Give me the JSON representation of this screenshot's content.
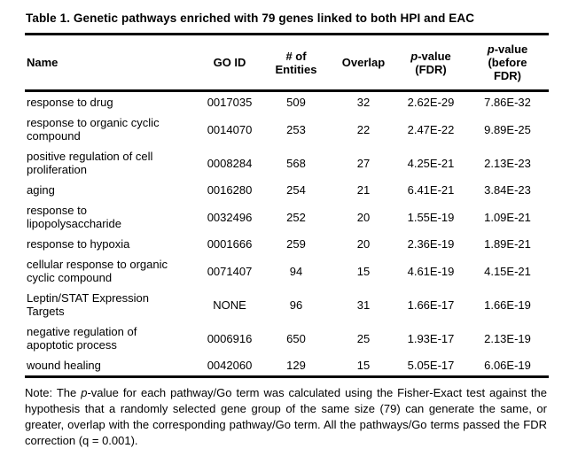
{
  "title": "Table 1. Genetic pathways enriched with 79 genes linked to both HPI and EAC",
  "table": {
    "columns": [
      {
        "key": "name",
        "segments": [
          {
            "t": "Name"
          }
        ]
      },
      {
        "key": "go-id",
        "segments": [
          {
            "t": "GO ID"
          }
        ]
      },
      {
        "key": "entities",
        "segments": [
          {
            "t": "# of\nEntities"
          }
        ]
      },
      {
        "key": "overlap",
        "segments": [
          {
            "t": "Overlap"
          }
        ]
      },
      {
        "key": "p-value-fdr",
        "segments": [
          {
            "t": "p",
            "i": true
          },
          {
            "t": "-value\n(FDR)"
          }
        ]
      },
      {
        "key": "p-value-before-fdr",
        "segments": [
          {
            "t": "p",
            "i": true
          },
          {
            "t": "-value\n(before\nFDR)"
          }
        ]
      }
    ],
    "rows": [
      {
        "name": "response to drug",
        "go_id": "0017035",
        "entities": "509",
        "overlap": "32",
        "p_fdr": "2.62E-29",
        "p_before_fdr": "7.86E-32"
      },
      {
        "name": "response to organic cyclic\ncompound",
        "go_id": "0014070",
        "entities": "253",
        "overlap": "22",
        "p_fdr": "2.47E-22",
        "p_before_fdr": "9.89E-25"
      },
      {
        "name": "positive regulation of cell\nproliferation",
        "go_id": "0008284",
        "entities": "568",
        "overlap": "27",
        "p_fdr": "4.25E-21",
        "p_before_fdr": "2.13E-23"
      },
      {
        "name": "aging",
        "go_id": "0016280",
        "entities": "254",
        "overlap": "21",
        "p_fdr": "6.41E-21",
        "p_before_fdr": "3.84E-23"
      },
      {
        "name": "response to\nlipopolysaccharide",
        "go_id": "0032496",
        "entities": "252",
        "overlap": "20",
        "p_fdr": "1.55E-19",
        "p_before_fdr": "1.09E-21"
      },
      {
        "name": "response to hypoxia",
        "go_id": "0001666",
        "entities": "259",
        "overlap": "20",
        "p_fdr": "2.36E-19",
        "p_before_fdr": "1.89E-21"
      },
      {
        "name": "cellular response to organic\ncyclic compound",
        "go_id": "0071407",
        "entities": "94",
        "overlap": "15",
        "p_fdr": "4.61E-19",
        "p_before_fdr": "4.15E-21"
      },
      {
        "name": "Leptin/STAT Expression\nTargets",
        "go_id": "NONE",
        "entities": "96",
        "overlap": "31",
        "p_fdr": "1.66E-17",
        "p_before_fdr": "1.66E-19"
      },
      {
        "name": "negative regulation of\napoptotic process",
        "go_id": "0006916",
        "entities": "650",
        "overlap": "25",
        "p_fdr": "1.93E-17",
        "p_before_fdr": "2.13E-19"
      },
      {
        "name": "wound healing",
        "go_id": "0042060",
        "entities": "129",
        "overlap": "15",
        "p_fdr": "5.05E-17",
        "p_before_fdr": "6.06E-19"
      }
    ]
  },
  "note": {
    "segments": [
      {
        "t": "Note: The "
      },
      {
        "t": "p",
        "i": true
      },
      {
        "t": "-value for each pathway/Go term was calculated using the Fisher-Exact test against the hypothesis that a randomly selected gene group of the same size (79) can generate the same, or greater, overlap with the corresponding pathway/Go term. All the pathways/Go terms passed the FDR correction (q = 0.001)."
      }
    ]
  }
}
